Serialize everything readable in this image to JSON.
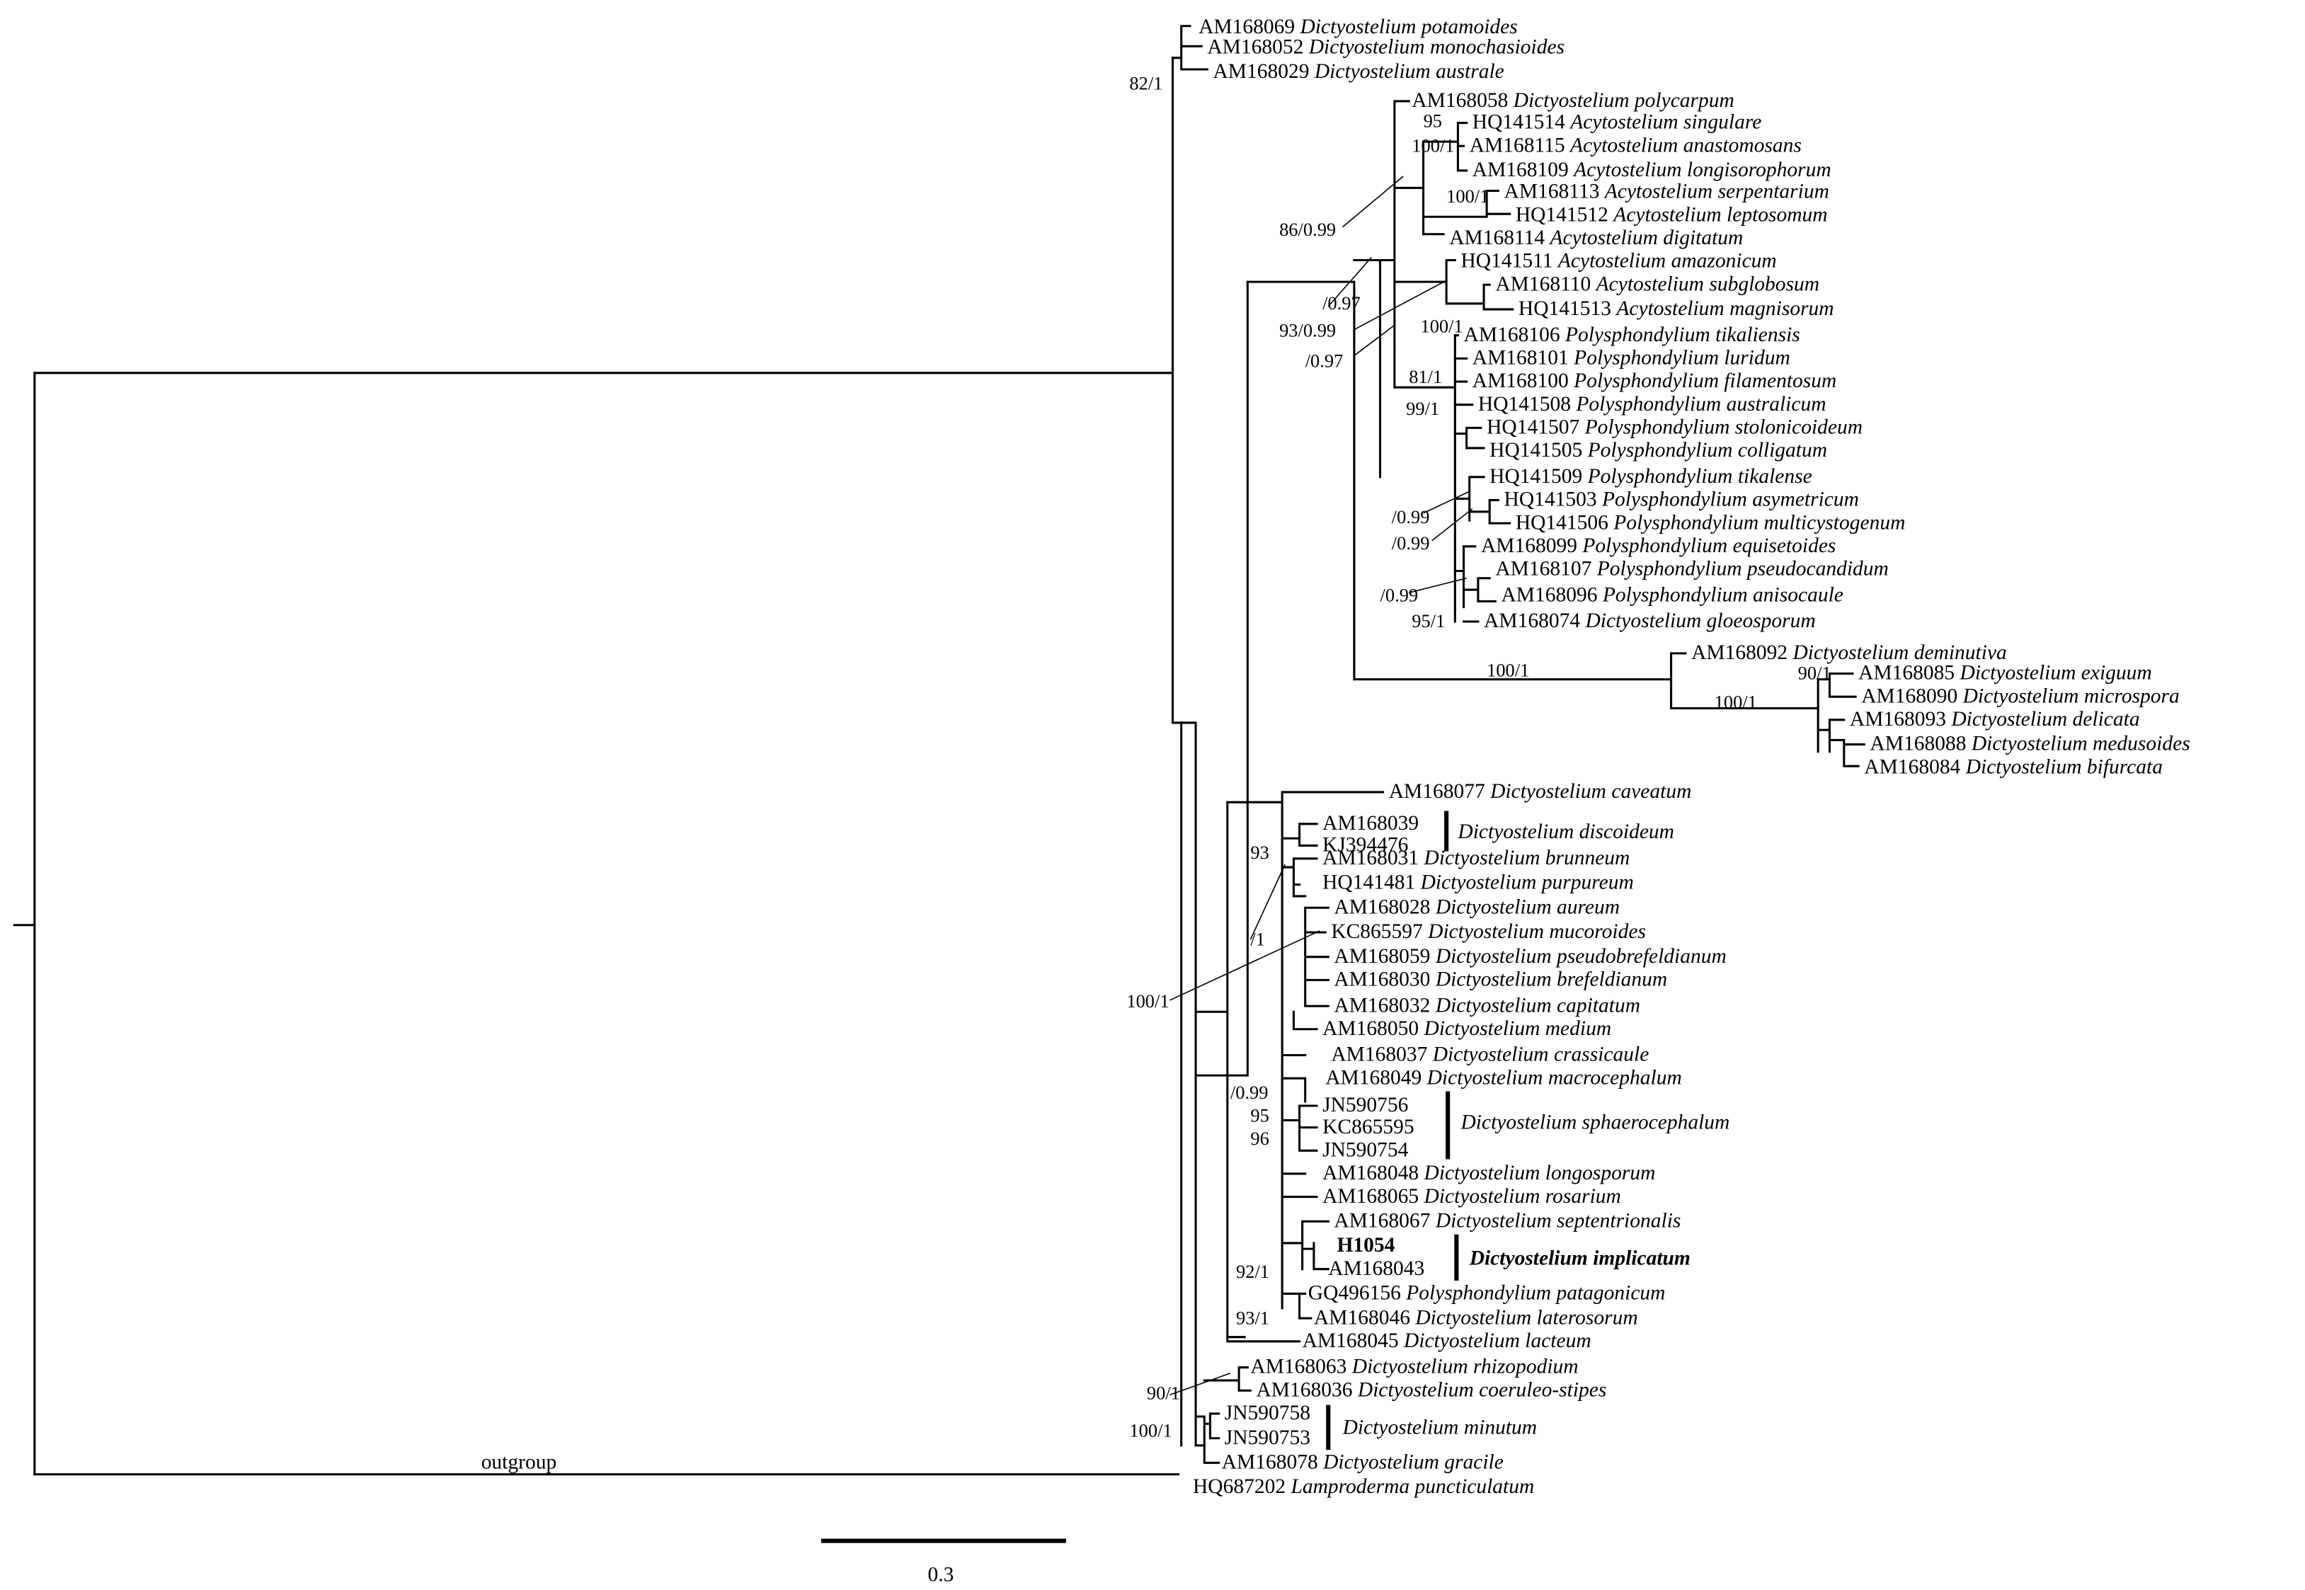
{
  "taxa": [
    {
      "acc": "AM168069",
      "name": "Dictyostelium potamoides"
    },
    {
      "acc": "AM168052",
      "name": "Dictyostelium monochasioides"
    },
    {
      "acc": "AM168029",
      "name": "Dictyostelium australe"
    },
    {
      "acc": "AM168058",
      "name": "Dictyostelium polycarpum"
    },
    {
      "acc": "HQ141514",
      "name": "Acytostelium singulare"
    },
    {
      "acc": "AM168115",
      "name": "Acytostelium anastomosans"
    },
    {
      "acc": "AM168109",
      "name": "Acytostelium longisorophorum"
    },
    {
      "acc": "AM168113",
      "name": "Acytostelium serpentarium"
    },
    {
      "acc": "HQ141512",
      "name": "Acytostelium leptosomum"
    },
    {
      "acc": "AM168114",
      "name": "Acytostelium digitatum"
    },
    {
      "acc": "HQ141511",
      "name": "Acytostelium amazonicum"
    },
    {
      "acc": "AM168110",
      "name": "Acytostelium subglobosum"
    },
    {
      "acc": "HQ141513",
      "name": "Acytostelium magnisorum"
    },
    {
      "acc": "AM168106",
      "name": "Polysphondylium tikaliensis"
    },
    {
      "acc": "AM168101",
      "name": "Polysphondylium luridum"
    },
    {
      "acc": "AM168100",
      "name": "Polysphondylium filamentosum"
    },
    {
      "acc": "HQ141508",
      "name": "Polysphondylium australicum"
    },
    {
      "acc": "HQ141507",
      "name": "Polysphondylium stolonicoideum"
    },
    {
      "acc": "HQ141505",
      "name": "Polysphondylium colligatum"
    },
    {
      "acc": "HQ141509",
      "name": "Polysphondylium tikalense"
    },
    {
      "acc": "HQ141503",
      "name": "Polysphondylium asymetricum"
    },
    {
      "acc": "HQ141506",
      "name": "Polysphondylium multicystogenum"
    },
    {
      "acc": "AM168099",
      "name": "Polysphondylium equisetoides"
    },
    {
      "acc": "AM168107",
      "name": "Polysphondylium pseudocandidum"
    },
    {
      "acc": "AM168096",
      "name": "Polysphondylium anisocaule"
    },
    {
      "acc": "AM168074",
      "name": "Dictyostelium gloeosporum"
    },
    {
      "acc": "AM168092",
      "name": "Dictyostelium deminutiva"
    },
    {
      "acc": "AM168085",
      "name": "Dictyostelium exiguum"
    },
    {
      "acc": "AM168090",
      "name": "Dictyostelium microspora"
    },
    {
      "acc": "AM168093",
      "name": "Dictyostelium delicata"
    },
    {
      "acc": "AM168088",
      "name": "Dictyostelium medusoides"
    },
    {
      "acc": "AM168084",
      "name": "Dictyostelium bifurcata"
    },
    {
      "acc": "AM168077",
      "name": "Dictyostelium caveatum"
    },
    {
      "acc": "AM168039",
      "name": ""
    },
    {
      "acc": "KJ394476",
      "name": ""
    },
    {
      "acc": "AM168031",
      "name": "Dictyostelium brunneum"
    },
    {
      "acc": "HQ141481",
      "name": "Dictyostelium purpureum"
    },
    {
      "acc": "AM168028",
      "name": "Dictyostelium aureum"
    },
    {
      "acc": "KC865597",
      "name": "Dictyostelium mucoroides"
    },
    {
      "acc": "AM168059",
      "name": "Dictyostelium pseudobrefeldianum"
    },
    {
      "acc": "AM168030",
      "name": "Dictyostelium brefeldianum"
    },
    {
      "acc": "AM168032",
      "name": "Dictyostelium capitatum"
    },
    {
      "acc": "AM168050",
      "name": "Dictyostelium medium"
    },
    {
      "acc": "AM168037",
      "name": "Dictyostelium crassicaule"
    },
    {
      "acc": "AM168049",
      "name": "Dictyostelium macrocephalum"
    },
    {
      "acc": "JN590756",
      "name": ""
    },
    {
      "acc": "KC865595",
      "name": ""
    },
    {
      "acc": "JN590754",
      "name": ""
    },
    {
      "acc": "AM168048",
      "name": "Dictyostelium longosporum"
    },
    {
      "acc": "AM168065",
      "name": "Dictyostelium rosarium"
    },
    {
      "acc": "AM168067",
      "name": "Dictyostelium septentrionalis"
    },
    {
      "acc": "H1054",
      "name": ""
    },
    {
      "acc": "AM168043",
      "name": ""
    },
    {
      "acc": "GQ496156",
      "name": "Polysphondylium patagonicum"
    },
    {
      "acc": "AM168046",
      "name": "Dictyostelium laterosorum"
    },
    {
      "acc": "AM168045",
      "name": "Dictyostelium lacteum"
    },
    {
      "acc": "AM168063",
      "name": "Dictyostelium rhizopodium"
    },
    {
      "acc": "AM168036",
      "name": "Dictyostelium coeruleo-stipes"
    },
    {
      "acc": "JN590758",
      "name": ""
    },
    {
      "acc": "JN590753",
      "name": ""
    },
    {
      "acc": "AM168078",
      "name": "Dictyostelium gracile"
    },
    {
      "acc": "HQ687202",
      "name": "Lamproderma puncticulatum"
    }
  ],
  "groups": [
    {
      "name": "Dictyostelium discoideum"
    },
    {
      "name": "Dictyostelium sphaerocephalum"
    },
    {
      "name": "Dictyostelium implicatum"
    },
    {
      "name": "Dictyostelium minutum"
    }
  ],
  "support": [
    "82/1",
    "95",
    "100/1",
    "100/1",
    "86/0.99",
    "/0.97",
    "93/0.99",
    "/0.97",
    "100/1",
    "81/1",
    "99/1",
    "/0.99",
    "/0.99",
    "/0.99",
    "95/1",
    "100/1",
    "100/1",
    "90/1",
    "93",
    "/1",
    "100/1",
    "/0.99",
    "95",
    "96",
    "92/1",
    "93/1",
    "90/1",
    "100/1"
  ],
  "outgroup_label": "outgroup",
  "scale": {
    "label": "0.3"
  }
}
